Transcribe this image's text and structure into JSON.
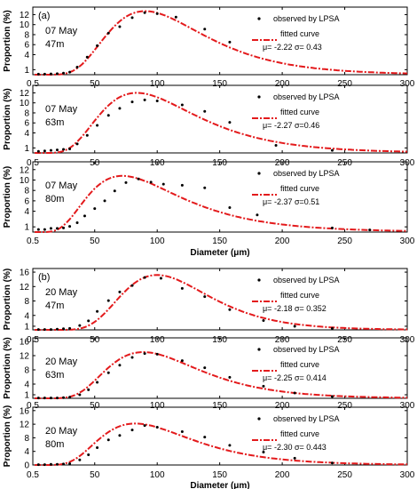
{
  "chart_data": [
    {
      "type": "line",
      "group": "a",
      "panel_label": "(a)",
      "annotation": [
        "07 May",
        "47m"
      ],
      "ylabel": "Proportion (%)",
      "xlabel": "",
      "xlim": [
        0.5,
        300
      ],
      "ylim": [
        0,
        13.5
      ],
      "xticks": [
        "0.5",
        "50",
        "100",
        "150",
        "200",
        "250",
        "300"
      ],
      "yticks": [
        1,
        4,
        6,
        8,
        10,
        12
      ],
      "legend": [
        "observed by LPSA",
        "fitted curve",
        "μ= -2.22  σ= 0.43"
      ],
      "mu": -2.22,
      "sigma": 0.43,
      "peak": 12.7,
      "series": [
        {
          "name": "observed by LPSA",
          "points": [
            [
              5,
              0.1
            ],
            [
              10,
              0.1
            ],
            [
              15,
              0.15
            ],
            [
              20,
              0.2
            ],
            [
              25,
              0.3
            ],
            [
              30,
              0.5
            ],
            [
              36,
              1.5
            ],
            [
              44,
              3.5
            ],
            [
              52,
              5.8
            ],
            [
              61,
              8.3
            ],
            [
              70,
              9.6
            ],
            [
              80,
              11.4
            ],
            [
              90,
              12.4
            ],
            [
              100,
              12.2
            ],
            [
              115,
              11.5
            ],
            [
              138,
              9.1
            ],
            [
              158,
              6.5
            ]
          ]
        },
        {
          "name": "fitted curve"
        }
      ]
    },
    {
      "type": "line",
      "group": "a",
      "panel_label": "",
      "annotation": [
        "07 May",
        "63m"
      ],
      "ylabel": "Proportion (%)",
      "xlabel": "",
      "xlim": [
        0.5,
        300
      ],
      "ylim": [
        0,
        13.5
      ],
      "xticks": [
        "0.5",
        "50",
        "100",
        "150",
        "200",
        "250",
        "300"
      ],
      "yticks": [
        1,
        4,
        6,
        8,
        10,
        12
      ],
      "legend": [
        "observed by LPSA",
        "fitted curve",
        "μ= -2.27  σ=0.46"
      ],
      "mu": -2.27,
      "sigma": 0.46,
      "peak": 12.0,
      "series": [
        {
          "name": "observed by LPSA",
          "points": [
            [
              5,
              0.3
            ],
            [
              10,
              0.4
            ],
            [
              15,
              0.5
            ],
            [
              20,
              0.6
            ],
            [
              25,
              0.7
            ],
            [
              30,
              0.8
            ],
            [
              36,
              1.8
            ],
            [
              44,
              3.5
            ],
            [
              52,
              5.5
            ],
            [
              61,
              7.5
            ],
            [
              70,
              8.9
            ],
            [
              80,
              10.2
            ],
            [
              90,
              10.6
            ],
            [
              100,
              10.4
            ],
            [
              120,
              9.6
            ],
            [
              138,
              8.3
            ],
            [
              158,
              6.1
            ],
            [
              195,
              1.5
            ],
            [
              240,
              0.5
            ]
          ]
        },
        {
          "name": "fitted curve"
        }
      ]
    },
    {
      "type": "line",
      "group": "a",
      "panel_label": "",
      "annotation": [
        "07 May",
        "80m"
      ],
      "ylabel": "Proportion (%)",
      "xlabel": "Diameter (μm)",
      "xlim": [
        0.5,
        300
      ],
      "ylim": [
        0,
        13.5
      ],
      "xticks": [
        "0.5",
        "50",
        "100",
        "150",
        "200",
        "250",
        "300"
      ],
      "yticks": [
        1,
        4,
        6,
        8,
        10,
        12
      ],
      "legend": [
        "observed by LPSA",
        "fitted curve",
        "μ= -2.37  σ=0.51"
      ],
      "mu": -2.37,
      "sigma": 0.51,
      "peak": 10.8,
      "series": [
        {
          "name": "observed by LPSA",
          "points": [
            [
              5,
              0.5
            ],
            [
              10,
              0.5
            ],
            [
              15,
              0.7
            ],
            [
              20,
              0.7
            ],
            [
              25,
              0.8
            ],
            [
              30,
              1.1
            ],
            [
              36,
              1.8
            ],
            [
              42,
              3.1
            ],
            [
              50,
              4.5
            ],
            [
              58,
              6.0
            ],
            [
              66,
              7.9
            ],
            [
              75,
              9.5
            ],
            [
              85,
              10.2
            ],
            [
              95,
              9.6
            ],
            [
              105,
              9.2
            ],
            [
              120,
              9.0
            ],
            [
              138,
              8.5
            ],
            [
              158,
              4.7
            ],
            [
              180,
              3.3
            ],
            [
              240,
              0.8
            ],
            [
              270,
              0.4
            ]
          ]
        },
        {
          "name": "fitted curve"
        }
      ]
    },
    {
      "type": "line",
      "group": "b",
      "panel_label": "(b)",
      "annotation": [
        "20 May",
        "47m"
      ],
      "ylabel": "Proportion (%)",
      "xlabel": "",
      "xlim": [
        0.5,
        300
      ],
      "ylim": [
        0,
        17
      ],
      "xticks": [
        "0.5",
        "50",
        "100",
        "150",
        "200",
        "250",
        "300"
      ],
      "yticks": [
        1,
        4,
        8,
        12,
        16
      ],
      "legend": [
        "observed by LPSA",
        "fitted curve",
        "μ= -2.18  σ= 0.352"
      ],
      "mu": -2.18,
      "sigma": 0.352,
      "peak": 15.2,
      "series": [
        {
          "name": "observed by LPSA",
          "points": [
            [
              5,
              0.1
            ],
            [
              10,
              0.1
            ],
            [
              15,
              0.1
            ],
            [
              20,
              0.2
            ],
            [
              25,
              0.3
            ],
            [
              30,
              0.4
            ],
            [
              38,
              1.2
            ],
            [
              45,
              2.5
            ],
            [
              52,
              5.1
            ],
            [
              61,
              8.1
            ],
            [
              70,
              10.5
            ],
            [
              80,
              12.3
            ],
            [
              90,
              14.5
            ],
            [
              103,
              14.3
            ],
            [
              120,
              11.5
            ],
            [
              138,
              9.2
            ],
            [
              158,
              5.6
            ],
            [
              185,
              2.6
            ],
            [
              210,
              1.0
            ],
            [
              240,
              0.4
            ]
          ]
        },
        {
          "name": "fitted curve"
        }
      ]
    },
    {
      "type": "line",
      "group": "b",
      "panel_label": "",
      "annotation": [
        "20 May",
        "63m"
      ],
      "ylabel": "Proportion (%)",
      "xlabel": "",
      "xlim": [
        0.5,
        300
      ],
      "ylim": [
        0,
        17
      ],
      "xticks": [
        "0.5",
        "50",
        "100",
        "150",
        "200",
        "250",
        "300"
      ],
      "yticks": [
        1,
        4,
        8,
        12,
        16
      ],
      "legend": [
        "observed by LPSA",
        "fitted curve",
        "μ= -2.25  σ= 0.414"
      ],
      "mu": -2.25,
      "sigma": 0.414,
      "peak": 13.0,
      "series": [
        {
          "name": "observed by LPSA",
          "points": [
            [
              5,
              0.1
            ],
            [
              10,
              0.1
            ],
            [
              15,
              0.1
            ],
            [
              20,
              0.1
            ],
            [
              25,
              0.2
            ],
            [
              30,
              0.3
            ],
            [
              38,
              1.0
            ],
            [
              45,
              2.4
            ],
            [
              52,
              4.5
            ],
            [
              61,
              7.2
            ],
            [
              70,
              9.3
            ],
            [
              80,
              11.5
            ],
            [
              90,
              12.6
            ],
            [
              100,
              12.4
            ],
            [
              120,
              10.6
            ],
            [
              138,
              8.6
            ],
            [
              158,
              5.9
            ],
            [
              185,
              3.4
            ],
            [
              210,
              1.5
            ],
            [
              240,
              0.5
            ]
          ]
        },
        {
          "name": "fitted curve"
        }
      ]
    },
    {
      "type": "line",
      "group": "b",
      "panel_label": "",
      "annotation": [
        "20 May",
        "80m"
      ],
      "ylabel": "Proportion (%)",
      "xlabel": "Diameter (μm)",
      "xlim": [
        0.5,
        300
      ],
      "ylim": [
        0,
        17
      ],
      "xticks": [
        "0.5",
        "50",
        "100",
        "150",
        "200",
        "250",
        "300"
      ],
      "yticks": [
        0,
        4,
        8,
        12,
        16
      ],
      "legend": [
        "observed by LPSA",
        "fitted curve",
        "μ= -2.30  σ= 0.443"
      ],
      "mu": -2.3,
      "sigma": 0.443,
      "peak": 12.2,
      "series": [
        {
          "name": "observed by LPSA",
          "points": [
            [
              5,
              0.1
            ],
            [
              10,
              0.1
            ],
            [
              15,
              0.2
            ],
            [
              20,
              0.2
            ],
            [
              25,
              0.3
            ],
            [
              30,
              0.4
            ],
            [
              38,
              1.5
            ],
            [
              45,
              3.0
            ],
            [
              52,
              5.1
            ],
            [
              61,
              7.4
            ],
            [
              70,
              8.7
            ],
            [
              80,
              10.3
            ],
            [
              90,
              11.6
            ],
            [
              100,
              11.1
            ],
            [
              120,
              9.8
            ],
            [
              138,
              8.2
            ],
            [
              158,
              5.8
            ],
            [
              185,
              3.8
            ],
            [
              210,
              2.0
            ],
            [
              240,
              0.6
            ]
          ]
        },
        {
          "name": "fitted curve"
        }
      ]
    }
  ],
  "colors": {
    "fit": "#e31a1c",
    "points": "#000000",
    "axis": "#000000"
  }
}
